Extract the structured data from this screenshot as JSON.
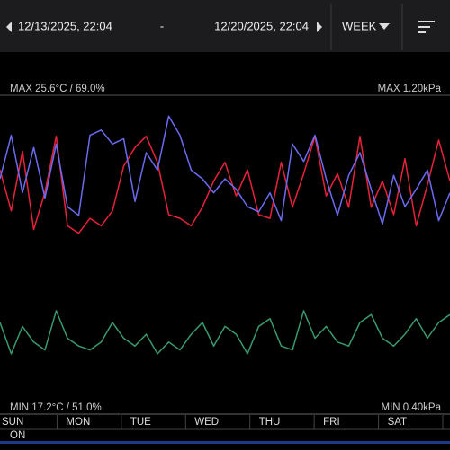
{
  "header": {
    "start_date": "12/13/2025, 22:04",
    "separator": "-",
    "end_date": "12/20/2025, 22:04",
    "period": "WEEK"
  },
  "chart": {
    "max_label_left": "MAX 25.6°C / 69.0%",
    "max_label_right": "MAX 1.20kPa",
    "min_label_left": "MIN 17.2°C / 51.0%",
    "min_label_right": "MIN 0.40kPa",
    "days": [
      "SUN",
      "MON",
      "TUE",
      "WED",
      "THU",
      "FRI",
      "SAT"
    ],
    "status": "ON",
    "series": [
      {
        "color": "#e8213a",
        "ylim": [
          17.2,
          25.6
        ],
        "values": [
          23.6,
          22.5,
          24.1,
          22.0,
          23.0,
          24.5,
          22.1,
          21.9,
          22.3,
          22.1,
          22.5,
          23.7,
          24.2,
          24.5,
          23.8,
          22.4,
          22.3,
          22.1,
          22.6,
          23.3,
          23.8,
          22.9,
          23.6,
          22.4,
          22.3,
          23.8,
          22.6,
          23.5,
          24.5,
          22.9,
          23.5,
          22.6,
          24.5,
          22.6,
          23.3,
          22.4,
          23.9,
          22.1,
          23.2,
          24.4,
          23.3
        ]
      },
      {
        "color": "#6b6bf0",
        "ylim": [
          51,
          69
        ],
        "values": [
          64.2,
          66.7,
          63.4,
          66.0,
          63.1,
          66.2,
          62.6,
          62.1,
          66.7,
          67.0,
          66.2,
          66.5,
          62.9,
          65.7,
          64.7,
          67.8,
          66.7,
          64.7,
          64.2,
          63.4,
          64.2,
          63.6,
          62.6,
          62.3,
          63.4,
          61.8,
          66.2,
          65.2,
          66.7,
          64.2,
          62.1,
          64.4,
          65.7,
          63.6,
          61.6,
          64.4,
          62.6,
          63.6,
          64.7,
          61.8,
          63.4
        ]
      },
      {
        "color": "#3a9a6e",
        "ylim": [
          0.4,
          1.2
        ],
        "values": [
          0.62,
          0.54,
          0.61,
          0.57,
          0.55,
          0.65,
          0.58,
          0.56,
          0.55,
          0.57,
          0.62,
          0.58,
          0.56,
          0.59,
          0.54,
          0.57,
          0.55,
          0.59,
          0.62,
          0.56,
          0.61,
          0.59,
          0.54,
          0.61,
          0.63,
          0.56,
          0.55,
          0.65,
          0.58,
          0.61,
          0.57,
          0.56,
          0.62,
          0.64,
          0.58,
          0.56,
          0.59,
          0.63,
          0.58,
          0.62,
          0.64
        ]
      }
    ]
  }
}
